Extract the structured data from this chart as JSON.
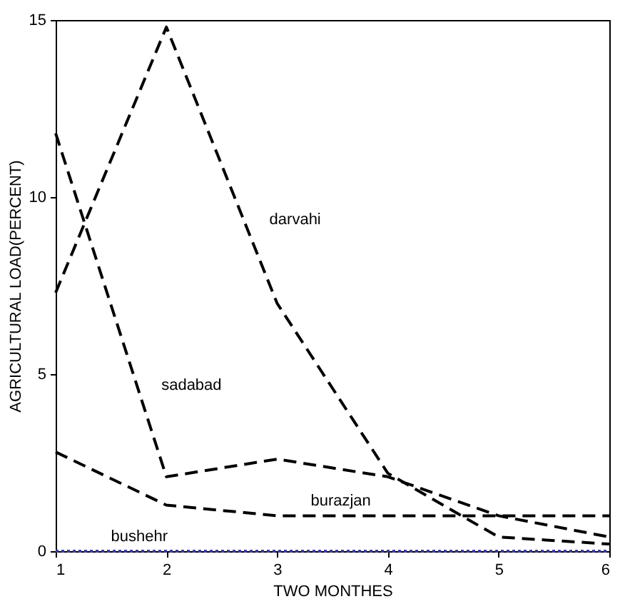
{
  "chart_data": {
    "type": "line",
    "xlabel": "TWO MONTHES",
    "ylabel": "AGRICULTURAL LOAD(PERCENT)",
    "x": [
      1,
      2,
      3,
      4,
      5,
      6
    ],
    "xlim": [
      1,
      6
    ],
    "xticks": [
      1,
      2,
      3,
      4,
      5,
      6
    ],
    "ylim": [
      0,
      15
    ],
    "yticks": [
      0,
      5,
      10,
      15
    ],
    "grid": false,
    "marker": "none",
    "series": [
      {
        "name": "darvahi",
        "color": "#000000",
        "line_style": "dashed",
        "values": [
          7.3,
          14.8,
          7.0,
          2.2,
          0.4,
          0.2
        ]
      },
      {
        "name": "sadabad",
        "color": "#000000",
        "line_style": "dashed",
        "values": [
          11.8,
          2.1,
          2.6,
          2.1,
          1.0,
          0.4
        ]
      },
      {
        "name": "burazjan",
        "color": "#000000",
        "line_style": "dashed",
        "values": [
          2.8,
          1.3,
          1.0,
          1.0,
          1.0,
          1.0
        ]
      },
      {
        "name": "bushehr",
        "color": "#3a3aa0",
        "line_style": "dotted",
        "values": [
          0,
          0,
          0,
          0,
          0,
          0
        ]
      }
    ]
  }
}
